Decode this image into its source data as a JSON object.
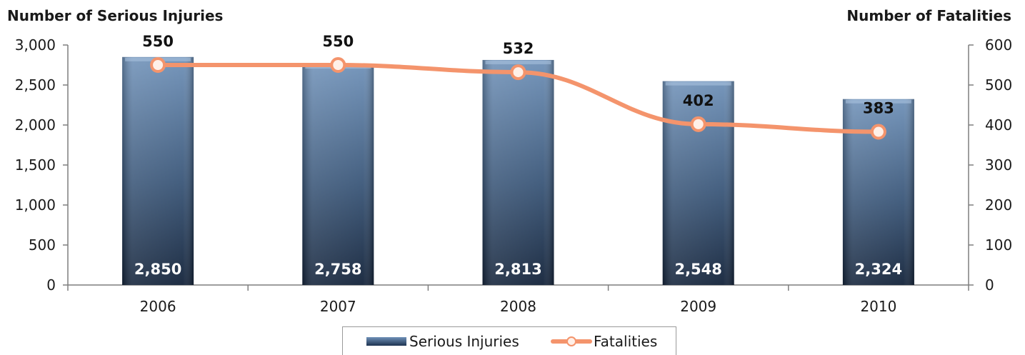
{
  "chart_data": {
    "type": "bar",
    "categories": [
      "2006",
      "2007",
      "2008",
      "2009",
      "2010"
    ],
    "series": [
      {
        "name": "Serious Injuries",
        "type": "bar",
        "axis": "left",
        "values": [
          2850,
          2758,
          2813,
          2548,
          2324
        ],
        "labels": [
          "2,850",
          "2,758",
          "2,813",
          "2,548",
          "2,324"
        ]
      },
      {
        "name": "Fatalities",
        "type": "line",
        "axis": "right",
        "values": [
          550,
          550,
          532,
          402,
          383
        ],
        "labels": [
          "550",
          "550",
          "532",
          "402",
          "383"
        ]
      }
    ],
    "ylabel_left": "Number of Serious Injuries",
    "ylabel_right": "Number of Fatalities",
    "ylim_left": [
      0,
      3000
    ],
    "ylim_right": [
      0,
      600
    ],
    "yticks_left": [
      "0",
      "500",
      "1,000",
      "1,500",
      "2,000",
      "2,500",
      "3,000"
    ],
    "yticks_right": [
      "0",
      "100",
      "200",
      "300",
      "400",
      "500",
      "600"
    ],
    "grid": false,
    "legend_position": "bottom",
    "colors": {
      "bar_top": "#6f91b8",
      "bar_bottom": "#13233a",
      "line": "#f4946c",
      "marker_fill": "#fff0e8"
    }
  }
}
